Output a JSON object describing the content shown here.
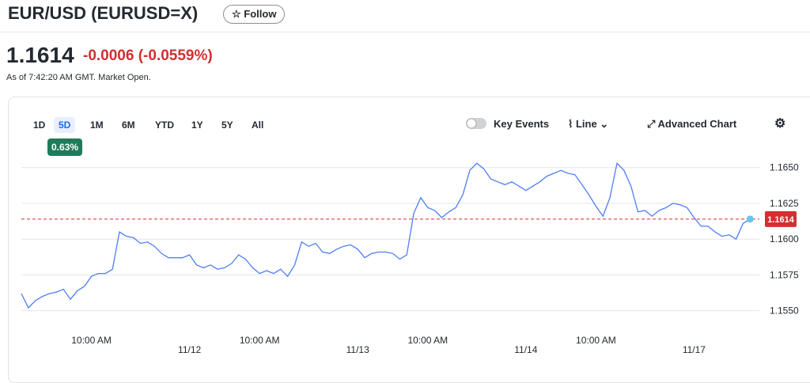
{
  "header": {
    "title": "EUR/USD (EURUSD=X)",
    "follow": "Follow",
    "price": "1.1614",
    "change": "-0.0006 (-0.0559%)",
    "timestamp": "As of 7:42:20 AM GMT. Market Open."
  },
  "toolbar": {
    "ranges": [
      "1D",
      "5D",
      "1M",
      "6M",
      "YTD",
      "1Y",
      "5Y",
      "All"
    ],
    "selected_range": 1,
    "range_change": "0.63%",
    "key_events": "Key Events",
    "line": "Line",
    "advanced_chart": "Advanced Chart"
  },
  "chart_data": {
    "type": "line",
    "color": "#4f7ef2",
    "grid": true,
    "x": [
      0,
      1,
      2,
      3,
      4,
      5,
      6,
      7,
      8,
      9,
      10,
      11,
      12,
      13,
      14,
      15,
      16,
      17,
      18,
      19,
      20,
      21,
      22,
      23,
      24,
      25,
      26,
      27,
      28,
      29,
      30,
      31,
      32,
      33,
      34,
      35,
      36,
      37,
      38,
      39,
      40,
      41,
      42,
      43,
      44,
      45,
      46,
      47,
      48,
      49,
      50,
      51,
      52,
      53,
      54,
      55,
      56,
      57,
      58,
      59,
      60,
      61,
      62,
      63,
      64,
      65,
      66,
      67,
      68,
      69,
      70,
      71,
      72,
      73,
      74,
      75,
      76,
      77,
      78,
      79,
      80,
      81,
      82,
      83,
      84,
      85,
      86,
      87,
      88,
      89,
      90,
      91,
      92,
      93,
      94,
      95,
      96,
      97,
      98,
      99,
      100,
      101,
      102,
      103,
      104
    ],
    "values": [
      1.1562,
      1.1552,
      1.1557,
      1.156,
      1.1562,
      1.1563,
      1.1565,
      1.1558,
      1.1564,
      1.1567,
      1.1574,
      1.1576,
      1.1576,
      1.1579,
      1.1605,
      1.1602,
      1.1601,
      1.1597,
      1.1598,
      1.1595,
      1.159,
      1.1587,
      1.1587,
      1.1587,
      1.1589,
      1.1582,
      1.158,
      1.1582,
      1.1579,
      1.158,
      1.1583,
      1.1589,
      1.1586,
      1.158,
      1.1576,
      1.1578,
      1.1576,
      1.1579,
      1.1574,
      1.1582,
      1.1598,
      1.1595,
      1.1597,
      1.1591,
      1.159,
      1.1593,
      1.1595,
      1.1596,
      1.1593,
      1.1587,
      1.159,
      1.1591,
      1.1591,
      1.159,
      1.1586,
      1.1589,
      1.1618,
      1.1629,
      1.1622,
      1.162,
      1.1615,
      1.1619,
      1.1622,
      1.1631,
      1.1648,
      1.1653,
      1.1649,
      1.1642,
      1.164,
      1.1638,
      1.164,
      1.1637,
      1.1634,
      1.1637,
      1.164,
      1.1644,
      1.1646,
      1.1648,
      1.1646,
      1.1645,
      1.1638,
      1.1631,
      1.1623,
      1.1616,
      1.1629,
      1.1653,
      1.1648,
      1.1637,
      1.1619,
      1.162,
      1.1616,
      1.162,
      1.1622,
      1.1625,
      1.1624,
      1.1622,
      1.1615,
      1.1609,
      1.1609,
      1.1605,
      1.1602,
      1.1603,
      1.16,
      1.1611,
      1.1614
    ],
    "xlim": [
      0,
      106
    ],
    "xticks": [
      {
        "value": 10,
        "label": "10:00 AM"
      },
      {
        "value": 24,
        "label": "11/12"
      },
      {
        "value": 34,
        "label": "10:00 AM"
      },
      {
        "value": 48,
        "label": "11/13"
      },
      {
        "value": 58,
        "label": "10:00 AM"
      },
      {
        "value": 72,
        "label": "11/14"
      },
      {
        "value": 82,
        "label": "10:00 AM"
      },
      {
        "value": 96,
        "label": "11/17"
      }
    ],
    "ylim": [
      1.1536,
      1.1662
    ],
    "yticks": [
      {
        "value": 1.155,
        "label": "1.1550"
      },
      1.1575,
      {
        "value": 1.16,
        "label": "1.1600"
      },
      1.1625,
      {
        "value": 1.165,
        "label": "1.1650"
      }
    ],
    "last_price": 1.1614,
    "last_price_color": "#d32f2f"
  }
}
